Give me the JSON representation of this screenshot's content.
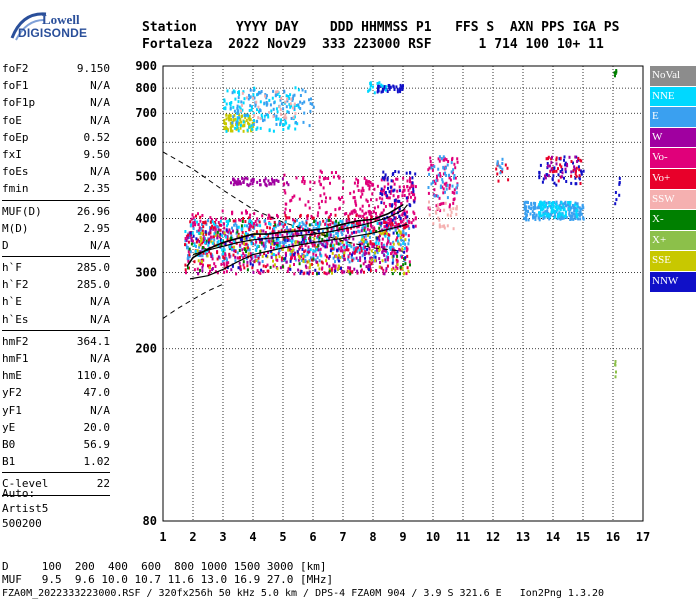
{
  "logo": {
    "line1": "Lowell",
    "line2": "DIGISONDE"
  },
  "header": {
    "row1": "Station     YYYY DAY    DDD HHMMSS P1   FFS S  AXN PPS IGA PS",
    "row2": "Fortaleza  2022 Nov29  333 223000 RSF      1 714 100 10+ 11"
  },
  "params": {
    "group1": [
      [
        "foF2",
        "9.150"
      ],
      [
        "foF1",
        "N/A"
      ],
      [
        "foF1p",
        "N/A"
      ],
      [
        "foE",
        "N/A"
      ],
      [
        "foEp",
        "0.52"
      ],
      [
        "fxI",
        "9.50"
      ],
      [
        "foEs",
        "N/A"
      ],
      [
        "fmin",
        "2.35"
      ]
    ],
    "group2": [
      [
        "MUF(D)",
        "26.96"
      ],
      [
        "M(D)",
        "2.95"
      ],
      [
        "D",
        "N/A"
      ]
    ],
    "group3": [
      [
        "h`F",
        "285.0"
      ],
      [
        "h`F2",
        "285.0"
      ],
      [
        "h`E",
        "N/A"
      ],
      [
        "h`Es",
        "N/A"
      ]
    ],
    "group4": [
      [
        "hmF2",
        "364.1"
      ],
      [
        "hmF1",
        "N/A"
      ],
      [
        "hmE",
        "110.0"
      ],
      [
        "yF2",
        "47.0"
      ],
      [
        "yF1",
        "N/A"
      ],
      [
        "yE",
        "20.0"
      ],
      [
        "B0",
        "56.9"
      ],
      [
        "B1",
        "1.02"
      ]
    ],
    "group5": [
      [
        "C-level",
        "22"
      ]
    ]
  },
  "auto": {
    "l1": "Auto:",
    "l2": "Artist5",
    "l3": "500200"
  },
  "legend": [
    {
      "label": "NoVal",
      "color": "#8c8c8c"
    },
    {
      "label": "NNE",
      "color": "#00d8ff"
    },
    {
      "label": "E",
      "color": "#3aa0f0"
    },
    {
      "label": "W",
      "color": "#a000a0"
    },
    {
      "label": "Vo-",
      "color": "#e0007a"
    },
    {
      "label": "Vo+",
      "color": "#e8002a"
    },
    {
      "label": "SSW",
      "color": "#f5b0b0"
    },
    {
      "label": "X-",
      "color": "#008000"
    },
    {
      "label": "X+",
      "color": "#8cc04a"
    },
    {
      "label": "SSE",
      "color": "#c8c800"
    },
    {
      "label": "NNW",
      "color": "#1010c8"
    }
  ],
  "bottom": {
    "d_row": "D     100  200  400  600  800 1000 1500 3000 [km]",
    "muf_row": "MUF   9.5  9.6 10.0 10.7 11.6 13.0 16.9 27.0 [MHz]",
    "footer": "FZA0M_2022333223000.RSF / 320fx256h 50 kHz 5.0 km / DPS-4 FZA0M 904 / 3.9 S 321.6 E   Ion2Png 1.3.20"
  },
  "chart_data": {
    "type": "scatter",
    "title": "",
    "xlabel": "",
    "ylabel": "",
    "xlim": [
      1,
      17
    ],
    "ylim": [
      80,
      900
    ],
    "yscale": "log",
    "x_ticks": [
      1,
      2,
      3,
      4,
      5,
      6,
      7,
      8,
      9,
      10,
      11,
      12,
      13,
      14,
      15,
      16,
      17
    ],
    "y_ticks": [
      80,
      200,
      300,
      400,
      500,
      600,
      700,
      800,
      900
    ],
    "grid": true,
    "profile": {
      "name": "",
      "color": "#000000",
      "points": [
        [
          2,
          330
        ],
        [
          2.5,
          338
        ],
        [
          3,
          345
        ],
        [
          3.5,
          352
        ],
        [
          4,
          357
        ],
        [
          4.5,
          360
        ],
        [
          5,
          362
        ],
        [
          5.5,
          365
        ],
        [
          6,
          368
        ],
        [
          6.5,
          372
        ],
        [
          7,
          378
        ],
        [
          7.5,
          384
        ],
        [
          8,
          392
        ],
        [
          8.5,
          402
        ],
        [
          9,
          418
        ],
        [
          9.15,
          430
        ]
      ]
    },
    "trace": {
      "name": "",
      "color": "#000000",
      "points": [
        [
          1.8,
          310
        ],
        [
          2,
          325
        ],
        [
          2.5,
          340
        ],
        [
          3,
          352
        ],
        [
          3.5,
          360
        ],
        [
          4,
          368
        ],
        [
          4.5,
          368
        ],
        [
          5,
          372
        ],
        [
          5.5,
          374
        ],
        [
          6,
          376
        ],
        [
          6.5,
          380
        ],
        [
          7,
          388
        ],
        [
          7.5,
          395
        ],
        [
          8,
          398
        ],
        [
          8.5,
          410
        ],
        [
          9,
          430
        ]
      ]
    },
    "lower_curve": {
      "points": [
        [
          1.9,
          290
        ],
        [
          2.5,
          295
        ],
        [
          3,
          305
        ],
        [
          3.5,
          318
        ],
        [
          4,
          330
        ],
        [
          5,
          342
        ],
        [
          6,
          352
        ],
        [
          7,
          360
        ],
        [
          8,
          370
        ],
        [
          9,
          385
        ],
        [
          9.15,
          388
        ]
      ]
    },
    "dashed_curve": {
      "points": [
        [
          1,
          570
        ],
        [
          2,
          520
        ],
        [
          3,
          465
        ],
        [
          4,
          420
        ],
        [
          5,
          392
        ],
        [
          6,
          372
        ],
        [
          7,
          355
        ],
        [
          8,
          342
        ],
        [
          9,
          336
        ]
      ]
    },
    "dashed_low": {
      "points": [
        [
          1,
          235
        ],
        [
          1.5,
          248
        ],
        [
          2,
          260
        ],
        [
          2.5,
          272
        ],
        [
          3,
          282
        ]
      ]
    },
    "clusters": [
      {
        "color": "#3aa0f0",
        "x": [
          1.7,
          9.2
        ],
        "y": [
          320,
          400
        ],
        "n": 450
      },
      {
        "color": "#e0007a",
        "x": [
          1.7,
          9.2
        ],
        "y": [
          300,
          420
        ],
        "n": 400
      },
      {
        "color": "#e8002a",
        "x": [
          1.7,
          9.2
        ],
        "y": [
          300,
          410
        ],
        "n": 250
      },
      {
        "color": "#a000a0",
        "x": [
          1.7,
          8.5
        ],
        "y": [
          300,
          380
        ],
        "n": 150
      },
      {
        "color": "#c8c800",
        "x": [
          2,
          9.2
        ],
        "y": [
          300,
          380
        ],
        "n": 120
      },
      {
        "color": "#008000",
        "x": [
          1.7,
          9.2
        ],
        "y": [
          300,
          400
        ],
        "n": 80
      },
      {
        "color": "#1010c8",
        "x": [
          1.7,
          9.2
        ],
        "y": [
          300,
          380
        ],
        "n": 70
      },
      {
        "color": "#00d8ff",
        "x": [
          1.7,
          9.2
        ],
        "y": [
          330,
          400
        ],
        "n": 100
      },
      {
        "color": "#e0007a",
        "x": [
          7.2,
          9.4
        ],
        "y": [
          380,
          500
        ],
        "n": 200
      },
      {
        "color": "#1010c8",
        "x": [
          8.2,
          9.4
        ],
        "y": [
          380,
          520
        ],
        "n": 60
      },
      {
        "color": "#a000a0",
        "x": [
          3.2,
          5.2
        ],
        "y": [
          480,
          500
        ],
        "n": 60
      },
      {
        "color": "#e0007a",
        "x": [
          5,
          7
        ],
        "y": [
          420,
          520
        ],
        "n": 60
      },
      {
        "color": "#c8c800",
        "x": [
          3,
          4
        ],
        "y": [
          640,
          700
        ],
        "n": 80
      },
      {
        "color": "#00d8ff",
        "x": [
          3,
          5.5
        ],
        "y": [
          640,
          810
        ],
        "n": 120
      },
      {
        "color": "#3aa0f0",
        "x": [
          3.2,
          6
        ],
        "y": [
          660,
          800
        ],
        "n": 90
      },
      {
        "color": "#f5b0b0",
        "x": [
          3.5,
          5.5
        ],
        "y": [
          680,
          800
        ],
        "n": 30
      },
      {
        "color": "#1010c8",
        "x": [
          8.1,
          9
        ],
        "y": [
          790,
          820
        ],
        "n": 40
      },
      {
        "color": "#00d8ff",
        "x": [
          7.8,
          8.5
        ],
        "y": [
          780,
          830
        ],
        "n": 15
      },
      {
        "color": "#e0007a",
        "x": [
          9.8,
          10.8
        ],
        "y": [
          420,
          560
        ],
        "n": 70
      },
      {
        "color": "#f5b0b0",
        "x": [
          9.8,
          10.8
        ],
        "y": [
          380,
          440
        ],
        "n": 30
      },
      {
        "color": "#3aa0f0",
        "x": [
          9.8,
          10.8
        ],
        "y": [
          450,
          560
        ],
        "n": 40
      },
      {
        "color": "#3aa0f0",
        "x": [
          13,
          15
        ],
        "y": [
          400,
          440
        ],
        "n": 200
      },
      {
        "color": "#00d8ff",
        "x": [
          13.5,
          14.8
        ],
        "y": [
          405,
          440
        ],
        "n": 80
      },
      {
        "color": "#1010c8",
        "x": [
          13.5,
          15
        ],
        "y": [
          480,
          560
        ],
        "n": 50
      },
      {
        "color": "#e8002a",
        "x": [
          13.6,
          15
        ],
        "y": [
          480,
          560
        ],
        "n": 30
      },
      {
        "color": "#a000a0",
        "x": [
          13.6,
          14.8
        ],
        "y": [
          500,
          560
        ],
        "n": 20
      },
      {
        "color": "#e8002a",
        "x": [
          12,
          12.5
        ],
        "y": [
          480,
          550
        ],
        "n": 10
      },
      {
        "color": "#3aa0f0",
        "x": [
          12,
          12.3
        ],
        "y": [
          500,
          560
        ],
        "n": 8
      },
      {
        "color": "#008000",
        "x": [
          16,
          16.1
        ],
        "y": [
          860,
          900
        ],
        "n": 5
      },
      {
        "color": "#1010c8",
        "x": [
          16,
          16.2
        ],
        "y": [
          430,
          500
        ],
        "n": 8
      },
      {
        "color": "#8cc04a",
        "x": [
          16,
          16.1
        ],
        "y": [
          170,
          190
        ],
        "n": 5
      }
    ]
  }
}
